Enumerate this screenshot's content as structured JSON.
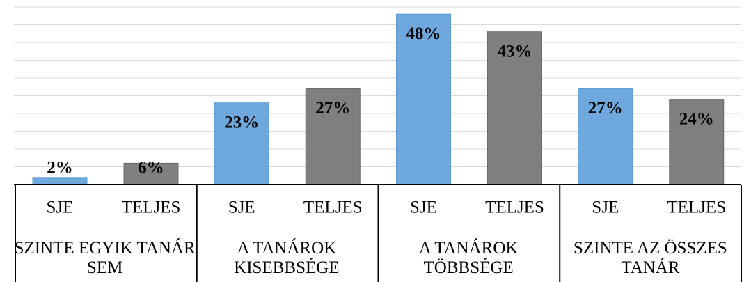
{
  "chart_data": {
    "type": "bar",
    "categories": [
      "SZINTE EGYIK TANÁR SEM",
      "A TANÁROK KISEBBSÉGE",
      "A TANÁROK TÖBBSÉGE",
      "SZINTE AZ ÖSSZES TANÁR"
    ],
    "series": [
      {
        "name": "SJE",
        "color": "#6fa8dc",
        "values": [
          2,
          23,
          48,
          27
        ],
        "value_labels": [
          "2%",
          "23%",
          "48%",
          "27%"
        ]
      },
      {
        "name": "TELJES",
        "color": "#7f7f7f",
        "values": [
          6,
          27,
          43,
          24
        ],
        "value_labels": [
          "6%",
          "27%",
          "43%",
          "24%"
        ]
      }
    ],
    "ylim": [
      0,
      50
    ],
    "yticks": [
      0,
      5,
      10,
      15,
      20,
      25,
      30,
      35,
      40,
      45,
      50
    ],
    "grid": true
  }
}
